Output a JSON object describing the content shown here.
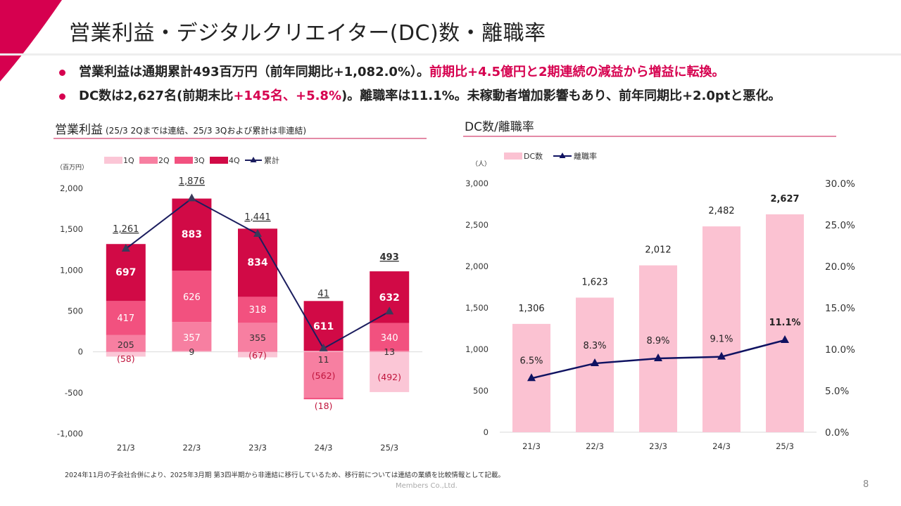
{
  "header": {
    "title": "営業利益・デジタルクリエイター(DC)数・離職率"
  },
  "bullets": [
    {
      "segments": [
        {
          "text": "営業利益は通期累計493百万円（前年同期比+1,082.0%）。",
          "highlight": false
        },
        {
          "text": "前期比+4.5億円と2期連続の減益から増益に転換。",
          "highlight": true
        }
      ]
    },
    {
      "segments": [
        {
          "text": "DC数は2,627名(前期末比",
          "highlight": false
        },
        {
          "text": "+145名、+5.8%",
          "highlight": true
        },
        {
          "text": ")。離職率は11.1%。未稼動者増加影響もあり、前年同期比+2.0ptと悪化。",
          "highlight": false
        }
      ]
    }
  ],
  "left_section": {
    "title": "営業利益",
    "subtitle": "(25/3 2Qまでは連結、25/3 3Qおよび累計は非連結)"
  },
  "right_section": {
    "title": "DC数/離職率"
  },
  "colors": {
    "accent": "#d6004f",
    "q1": "#fbc6d6",
    "q2": "#f77fa1",
    "q3": "#f2517f",
    "q4": "#d10a46",
    "cumulative": "#1b1d5e",
    "dc_bar": "#fbc2d2",
    "rate_line": "#0f1261"
  },
  "chart_data": [
    {
      "type": "bar",
      "stacked": true,
      "unit_label": "（百万円）",
      "categories": [
        "21/3",
        "22/3",
        "23/3",
        "24/3",
        "25/3"
      ],
      "series": [
        {
          "name": "1Q",
          "values": [
            -58,
            9,
            -67,
            11,
            -492
          ],
          "labels": [
            "(58)",
            "9",
            "(67)",
            "11",
            "(492)"
          ]
        },
        {
          "name": "2Q",
          "values": [
            205,
            357,
            355,
            -562,
            13
          ],
          "labels": [
            "205",
            "357",
            "355",
            "(562)",
            "13"
          ]
        },
        {
          "name": "3Q",
          "values": [
            417,
            626,
            318,
            -18,
            340
          ],
          "labels": [
            "417",
            "626",
            "318",
            "(18)",
            "340"
          ]
        },
        {
          "name": "4Q",
          "values": [
            697,
            883,
            834,
            611,
            632
          ],
          "labels": [
            "697",
            "883",
            "834",
            "611",
            "632"
          ]
        }
      ],
      "cumulative": {
        "name": "累計",
        "values": [
          1261,
          1876,
          1441,
          41,
          493
        ],
        "labels": [
          "1,261",
          "1,876",
          "1,441",
          "41",
          "493"
        ]
      },
      "ylim": [
        -1000,
        2000
      ],
      "yticks": [
        2000,
        1500,
        1000,
        500,
        0,
        -500,
        -1000
      ],
      "ytick_labels": [
        "2,000",
        "1,500",
        "1,000",
        "500",
        "0",
        "-500",
        "-1,000"
      ],
      "legend_position": "top"
    },
    {
      "type": "bar",
      "unit_label": "（人）",
      "categories": [
        "21/3",
        "22/3",
        "23/3",
        "24/3",
        "25/3"
      ],
      "series": [
        {
          "name": "DC数",
          "type": "bar",
          "axis": "left",
          "values": [
            1306,
            1623,
            2012,
            2482,
            2627
          ],
          "labels": [
            "1,306",
            "1,623",
            "2,012",
            "2,482",
            "2,627"
          ]
        },
        {
          "name": "離職率",
          "type": "line",
          "axis": "right",
          "values": [
            6.5,
            8.3,
            8.9,
            9.1,
            11.1
          ],
          "labels": [
            "6.5%",
            "8.3%",
            "8.9%",
            "9.1%",
            "11.1%"
          ]
        }
      ],
      "ylim_left": [
        0,
        3000
      ],
      "yticks_left": [
        3000,
        2500,
        2000,
        1500,
        1000,
        500,
        0
      ],
      "ytick_labels_left": [
        "3,000",
        "2,500",
        "2,000",
        "1,500",
        "1,000",
        "500",
        "0"
      ],
      "ylim_right": [
        0,
        30
      ],
      "yticks_right": [
        30,
        25,
        20,
        15,
        10,
        5,
        0
      ],
      "ytick_labels_right": [
        "30.0%",
        "25.0%",
        "20.0%",
        "15.0%",
        "10.0%",
        "5.0%",
        "0.0%"
      ],
      "legend_position": "top"
    }
  ],
  "footer": {
    "note": "2024年11月の子会社合併により、2025年3月期 第3四半期から非連結に移行しているため、移行前については連結の業績を比較情報として記載。",
    "copyright": "Members Co.,Ltd.",
    "page_number": "8"
  }
}
